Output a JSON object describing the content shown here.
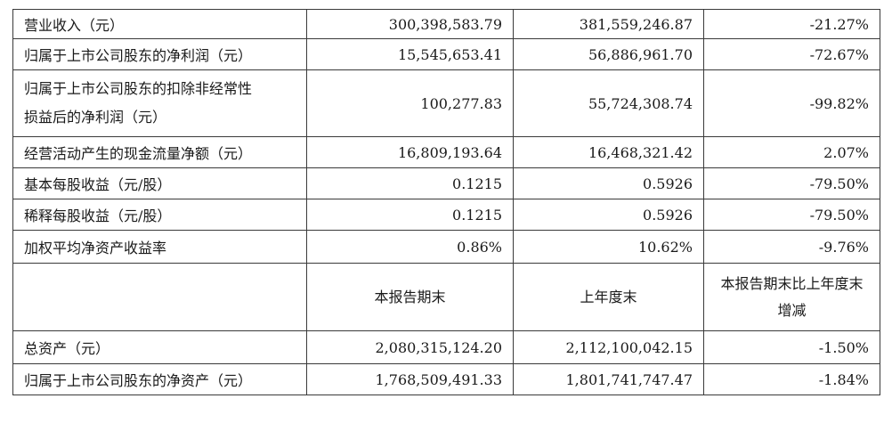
{
  "rows_top": [
    {
      "label": "营业收入（元）",
      "current": "300,398,583.79",
      "previous": "381,559,246.87",
      "change": "-21.27%"
    },
    {
      "label": "归属于上市公司股东的净利润（元）",
      "current": "15,545,653.41",
      "previous": "56,886,961.70",
      "change": "-72.67%"
    },
    {
      "label_line1": "归属于上市公司股东的扣除非经常性",
      "label_line2": "损益后的净利润（元）",
      "current": "100,277.83",
      "previous": "55,724,308.74",
      "change": "-99.82%"
    },
    {
      "label": "经营活动产生的现金流量净额（元）",
      "current": "16,809,193.64",
      "previous": "16,468,321.42",
      "change": "2.07%"
    },
    {
      "label": "基本每股收益（元/股）",
      "current": "0.1215",
      "previous": "0.5926",
      "change": "-79.50%"
    },
    {
      "label": "稀释每股收益（元/股）",
      "current": "0.1215",
      "previous": "0.5926",
      "change": "-79.50%"
    },
    {
      "label": "加权平均净资产收益率",
      "current": "0.86%",
      "previous": "10.62%",
      "change": "-9.76%"
    }
  ],
  "header2": {
    "col1": "",
    "col2": "本报告期末",
    "col3": "上年度末",
    "col4_line1": "本报告期末比上年度末",
    "col4_line2": "增减"
  },
  "rows_bottom": [
    {
      "label": "总资产（元）",
      "current": "2,080,315,124.20",
      "previous": "2,112,100,042.15",
      "change": "-1.50%"
    },
    {
      "label": "归属于上市公司股东的净资产（元）",
      "current": "1,768,509,491.33",
      "previous": "1,801,741,747.47",
      "change": "-1.84%"
    }
  ]
}
